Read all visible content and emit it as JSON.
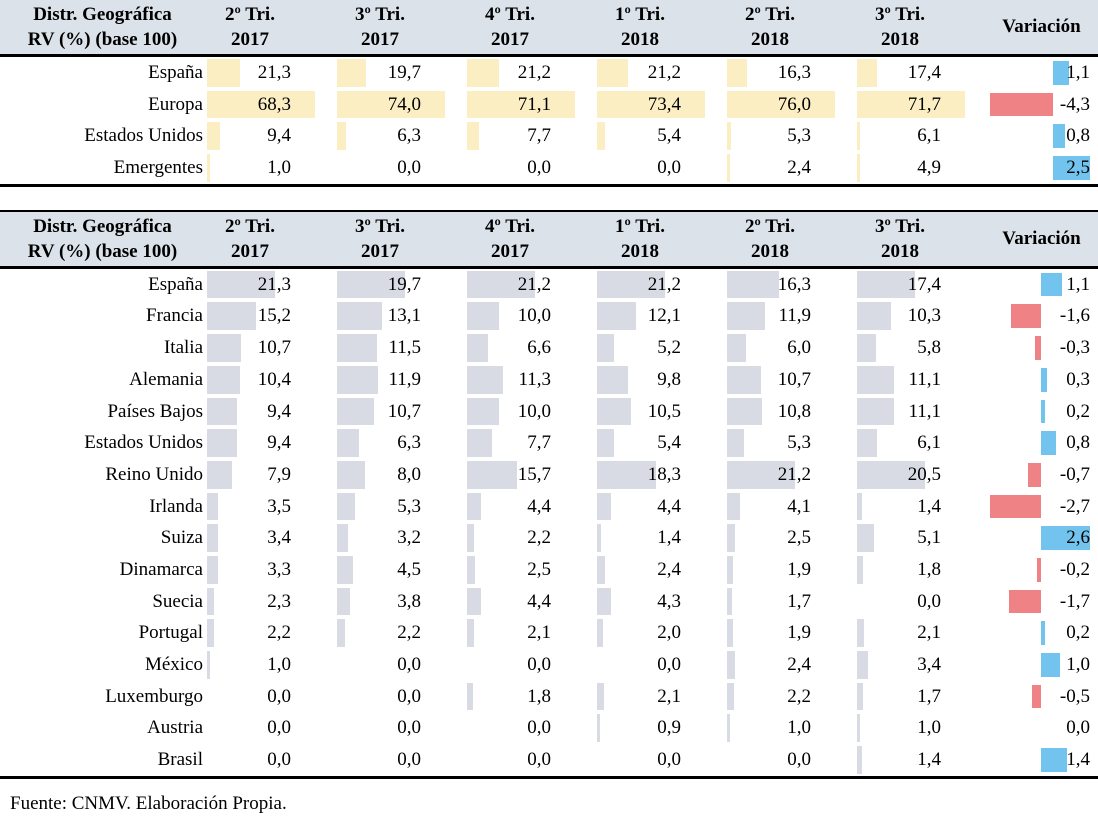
{
  "colors": {
    "header_bg": "#dbe2ea",
    "table1_value_bar": "#fbeec3",
    "table2_value_bar": "#d8dbe4",
    "variation_positive": "#72c4ee",
    "variation_negative": "#ef8285"
  },
  "footer": {
    "text": "Fuente: CNMV. Elaboración Propia."
  },
  "chart_data": [
    {
      "type": "table",
      "title_lines": [
        "Distr. Geográfica",
        "RV (%) (base 100)"
      ],
      "columns": [
        [
          "2º Tri.",
          "2017"
        ],
        [
          "3º Tri.",
          "2017"
        ],
        [
          "4º Tri.",
          "2017"
        ],
        [
          "1º Tri.",
          "2018"
        ],
        [
          "2º Tri.",
          "2018"
        ],
        [
          "3º Tri.",
          "2018"
        ]
      ],
      "variation_label": "Variación",
      "rows": [
        {
          "label": "España",
          "values": [
            21.3,
            19.7,
            21.2,
            21.2,
            16.3,
            17.4
          ],
          "variation": 1.1
        },
        {
          "label": "Europa",
          "values": [
            68.3,
            74.0,
            71.1,
            73.4,
            76.0,
            71.7
          ],
          "variation": -4.3
        },
        {
          "label": "Estados Unidos",
          "values": [
            9.4,
            6.3,
            7.7,
            5.4,
            5.3,
            6.1
          ],
          "variation": 0.8
        },
        {
          "label": "Emergentes",
          "values": [
            1.0,
            0.0,
            0.0,
            0.0,
            2.4,
            4.9
          ],
          "variation": 2.5
        }
      ]
    },
    {
      "type": "table",
      "title_lines": [
        "Distr. Geográfica",
        "RV (%) (base 100)"
      ],
      "columns": [
        [
          "2º Tri.",
          "2017"
        ],
        [
          "3º Tri.",
          "2017"
        ],
        [
          "4º Tri.",
          "2017"
        ],
        [
          "1º Tri.",
          "2018"
        ],
        [
          "2º Tri.",
          "2018"
        ],
        [
          "3º Tri.",
          "2018"
        ]
      ],
      "variation_label": "Variación",
      "rows": [
        {
          "label": "España",
          "values": [
            21.3,
            19.7,
            21.2,
            21.2,
            16.3,
            17.4
          ],
          "variation": 1.1
        },
        {
          "label": "Francia",
          "values": [
            15.2,
            13.1,
            10.0,
            12.1,
            11.9,
            10.3
          ],
          "variation": -1.6
        },
        {
          "label": "Italia",
          "values": [
            10.7,
            11.5,
            6.6,
            5.2,
            6.0,
            5.8
          ],
          "variation": -0.3
        },
        {
          "label": "Alemania",
          "values": [
            10.4,
            11.9,
            11.3,
            9.8,
            10.7,
            11.1
          ],
          "variation": 0.3
        },
        {
          "label": "Países Bajos",
          "values": [
            9.4,
            10.7,
            10.0,
            10.5,
            10.8,
            11.1
          ],
          "variation": 0.2
        },
        {
          "label": "Estados Unidos",
          "values": [
            9.4,
            6.3,
            7.7,
            5.4,
            5.3,
            6.1
          ],
          "variation": 0.8
        },
        {
          "label": "Reino Unido",
          "values": [
            7.9,
            8.0,
            15.7,
            18.3,
            21.2,
            20.5
          ],
          "variation": -0.7
        },
        {
          "label": "Irlanda",
          "values": [
            3.5,
            5.3,
            4.4,
            4.4,
            4.1,
            1.4
          ],
          "variation": -2.7
        },
        {
          "label": "Suiza",
          "values": [
            3.4,
            3.2,
            2.2,
            1.4,
            2.5,
            5.1
          ],
          "variation": 2.6
        },
        {
          "label": "Dinamarca",
          "values": [
            3.3,
            4.5,
            2.5,
            2.4,
            1.9,
            1.8
          ],
          "variation": -0.2
        },
        {
          "label": "Suecia",
          "values": [
            2.3,
            3.8,
            4.4,
            4.3,
            1.7,
            0.0
          ],
          "variation": -1.7
        },
        {
          "label": "Portugal",
          "values": [
            2.2,
            2.2,
            2.1,
            2.0,
            1.9,
            2.1
          ],
          "variation": 0.2
        },
        {
          "label": "México",
          "values": [
            1.0,
            0.0,
            0.0,
            0.0,
            2.4,
            3.4
          ],
          "variation": 1.0
        },
        {
          "label": "Luxemburgo",
          "values": [
            0.0,
            0.0,
            1.8,
            2.1,
            2.2,
            1.7
          ],
          "variation": -0.5
        },
        {
          "label": "Austria",
          "values": [
            0.0,
            0.0,
            0.0,
            0.9,
            1.0,
            1.0
          ],
          "variation": 0.0
        },
        {
          "label": "Brasil",
          "values": [
            0.0,
            0.0,
            0.0,
            0.0,
            0.0,
            1.4
          ],
          "variation": 1.4
        }
      ]
    }
  ]
}
